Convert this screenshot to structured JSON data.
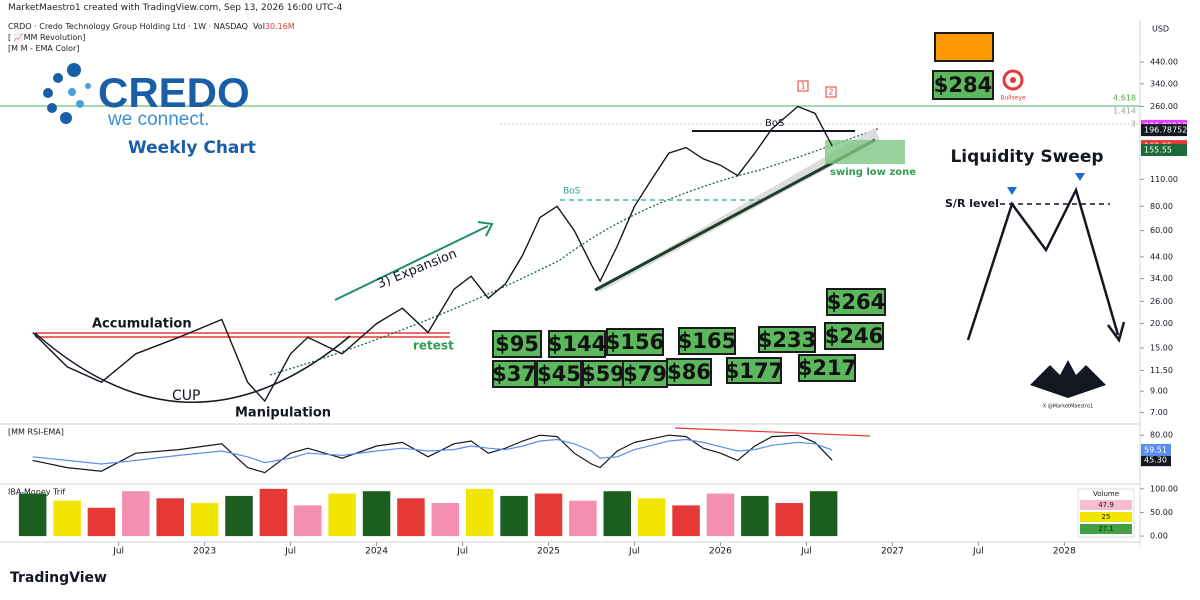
{
  "header": {
    "credit": "MarketMaestro1 created with TradingView.com, Sep 13, 2026 16:00 UTC-4",
    "symbol": "CRDO · Credo Technology Group Holding Ltd · 1W · NASDAQ",
    "volume_label": "Vol",
    "volume": "30.16M",
    "indicators": [
      "[ 📈MM Revolution]",
      "[M M - EMA Color]"
    ],
    "currency": "USD"
  },
  "logo": {
    "name": "CREDO",
    "tagline": "we connect.",
    "caption": "Weekly Chart"
  },
  "inset": {
    "title": "Liquidity Sweep",
    "label": "S/R  level"
  },
  "targets": [
    "$95",
    "$144",
    "$156",
    "$165",
    "$233",
    "$246",
    "$264",
    "$37",
    "$45",
    "$59",
    "$79",
    "$86",
    "$177",
    "$217",
    "$284"
  ],
  "labels": {
    "accumulation": "Accumulation",
    "cup": "CUP",
    "manipulation": "Manipulation",
    "retest": "retest",
    "expansion": "3) Expansion",
    "bos1": "BoS",
    "bos2": "BoS",
    "swing": "swing low zone",
    "peak1": "1",
    "peak2": "2",
    "bullseye": "Bullseye",
    "fib1": "4.618",
    "fib2": "1.414",
    "fib3": "3",
    "signature": "X @MarketMaestro1"
  },
  "footer": "TradingView",
  "chart_data": [
    {
      "type": "line",
      "log": true,
      "grid": false,
      "color": "#131722",
      "x": [
        2022.0,
        2022.2,
        2022.4,
        2022.6,
        2022.85,
        2023.1,
        2023.25,
        2023.35,
        2023.5,
        2023.6,
        2023.8,
        2024.0,
        2024.15,
        2024.3,
        2024.45,
        2024.55,
        2024.65,
        2024.75,
        2024.85,
        2024.95,
        2025.05,
        2025.15,
        2025.25,
        2025.3,
        2025.4,
        2025.5,
        2025.6,
        2025.7,
        2025.8,
        2025.9,
        2026.0,
        2026.1,
        2026.2,
        2026.3,
        2026.45,
        2026.55,
        2026.65
      ],
      "values": [
        18,
        12,
        10,
        14,
        17,
        21,
        10,
        8,
        14,
        17,
        14,
        20,
        24,
        18,
        30,
        35,
        27,
        32,
        45,
        70,
        80,
        60,
        40,
        33,
        50,
        80,
        110,
        150,
        160,
        140,
        130,
        115,
        150,
        200,
        260,
        240,
        162.95
      ],
      "xlim": [
        2021.81,
        2028.44
      ],
      "xticks": [
        {
          "value": 2022.5,
          "label": "Jul"
        },
        2023,
        {
          "value": 2023.5,
          "label": "Jul"
        },
        2024,
        {
          "value": 2024.5,
          "label": "Jul"
        },
        2025,
        {
          "value": 2025.5,
          "label": "Jul"
        },
        2026,
        {
          "value": 2026.5,
          "label": "Jul"
        },
        2027,
        {
          "value": 2027.5,
          "label": "Jul"
        },
        2028
      ],
      "ylim": [
        6.4,
        723
      ],
      "yticks": [
        {
          "value": 440,
          "label": "440.00"
        },
        {
          "value": 340,
          "label": "340.00"
        },
        {
          "value": 260,
          "label": "260.00"
        },
        {
          "value": 110,
          "label": "110.00"
        },
        {
          "value": 80,
          "label": "80.00"
        },
        {
          "value": 60,
          "label": "60.00"
        },
        {
          "value": 44,
          "label": "44.00"
        },
        {
          "value": 34,
          "label": "34.00"
        },
        {
          "value": 26,
          "label": "26.00"
        },
        {
          "value": 20,
          "label": "20.00"
        },
        {
          "value": 15,
          "label": "15.00"
        },
        {
          "value": 11.5,
          "label": "11.50"
        },
        {
          "value": 9,
          "label": "9.00"
        },
        {
          "value": 7,
          "label": "7.00"
        }
      ],
      "price_tags": [
        {
          "value": 206.829109,
          "color": "#e040fb"
        },
        {
          "value": 196.787527,
          "color": "#131722"
        },
        {
          "value": 162.95,
          "color": "#e53935"
        },
        {
          "value": 155.55,
          "color": "#1e6b3a"
        }
      ]
    },
    {
      "type": "line",
      "title": "[MM RSI-EMA]",
      "x": [
        2022.0,
        2022.2,
        2022.4,
        2022.6,
        2022.85,
        2023.1,
        2023.25,
        2023.35,
        2023.5,
        2023.6,
        2023.8,
        2024.0,
        2024.15,
        2024.3,
        2024.45,
        2024.55,
        2024.65,
        2024.75,
        2024.85,
        2024.95,
        2025.05,
        2025.15,
        2025.25,
        2025.3,
        2025.4,
        2025.5,
        2025.6,
        2025.7,
        2025.8,
        2025.9,
        2026.0,
        2026.1,
        2026.2,
        2026.3,
        2026.45,
        2026.55,
        2026.65
      ],
      "series": [
        {
          "color": "#131722",
          "values": [
            45,
            35,
            30,
            55,
            60,
            68,
            35,
            28,
            55,
            62,
            48,
            65,
            70,
            50,
            68,
            72,
            55,
            62,
            72,
            80,
            78,
            55,
            40,
            35,
            58,
            70,
            75,
            80,
            78,
            62,
            55,
            45,
            65,
            78,
            80,
            70,
            45.3
          ],
          "value_label": "45.30"
        },
        {
          "color": "#5b8def",
          "values": [
            50,
            45,
            40,
            45,
            52,
            58,
            50,
            42,
            48,
            55,
            52,
            58,
            62,
            58,
            60,
            65,
            62,
            60,
            65,
            72,
            74,
            68,
            58,
            48,
            50,
            60,
            66,
            72,
            74,
            70,
            64,
            58,
            60,
            66,
            70,
            68,
            59.51
          ]
        }
      ],
      "xlim": [
        2021.81,
        2028.44
      ],
      "ylim": [
        15,
        90
      ],
      "yticks": [
        {
          "value": 80,
          "label": "80.00"
        }
      ]
    },
    {
      "type": "bar",
      "title": "IBA-Money Trif",
      "x": [
        2022.0,
        2022.2,
        2022.4,
        2022.6,
        2022.8,
        2023.0,
        2023.2,
        2023.4,
        2023.6,
        2023.8,
        2024.0,
        2024.2,
        2024.4,
        2024.6,
        2024.8,
        2025.0,
        2025.2,
        2025.4,
        2025.6,
        2025.8,
        2026.0,
        2026.2,
        2026.4,
        2026.6
      ],
      "values": [
        90,
        75,
        60,
        95,
        80,
        70,
        85,
        100,
        65,
        90,
        95,
        80,
        70,
        100,
        85,
        90,
        75,
        95,
        80,
        65,
        90,
        85,
        70,
        95
      ],
      "colors": [
        "#1b5e20",
        "#f2e600",
        "#e53935",
        "#f48fb1",
        "#e53935",
        "#f2e600",
        "#1b5e20",
        "#e53935",
        "#f48fb1",
        "#f2e600",
        "#1b5e20",
        "#e53935",
        "#f48fb1",
        "#f2e600",
        "#1b5e20",
        "#e53935",
        "#f48fb1",
        "#1b5e20",
        "#f2e600",
        "#e53935",
        "#f48fb1",
        "#1b5e20",
        "#e53935",
        "#1b5e20"
      ],
      "xlim": [
        2021.81,
        2028.44
      ],
      "ylim": [
        -4,
        106
      ],
      "yticks": [
        {
          "value": 100,
          "label": "100.00"
        },
        {
          "value": 50,
          "label": "50.00"
        },
        {
          "value": 0,
          "label": "0.00"
        }
      ],
      "legend_box": {
        "title": "Volume",
        "values": [
          47.9,
          25,
          27.1
        ],
        "colors": [
          "#f8bbd0",
          "#f2e600",
          "#43a047"
        ]
      }
    }
  ]
}
